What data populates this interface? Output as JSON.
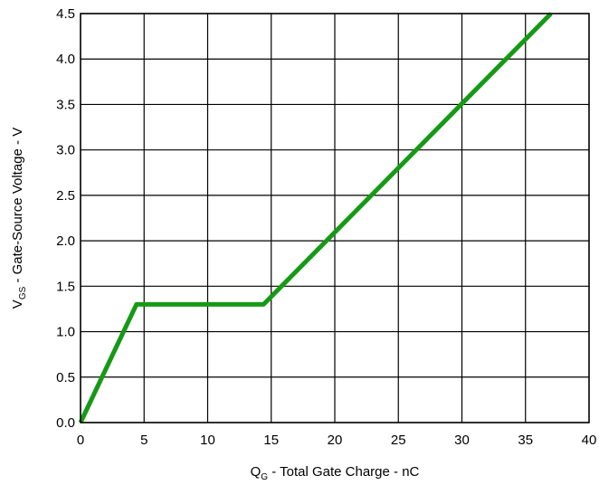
{
  "chart_data": {
    "type": "line",
    "xlabel": {
      "main": "Q",
      "sub": "G",
      "rest": " - Total Gate Charge - nC"
    },
    "ylabel": {
      "main": "V",
      "sub": "GS",
      "rest": " - Gate-Source Voltage - V"
    },
    "xlim": [
      0,
      40
    ],
    "ylim": [
      0,
      4.5
    ],
    "x_ticks": [
      0,
      5,
      10,
      15,
      20,
      25,
      30,
      35,
      40
    ],
    "x_tick_labels": [
      "0",
      "5",
      "10",
      "15",
      "20",
      "25",
      "30",
      "35",
      "40"
    ],
    "y_ticks": [
      0,
      0.5,
      1.0,
      1.5,
      2.0,
      2.5,
      3.0,
      3.5,
      4.0,
      4.5
    ],
    "y_tick_labels": [
      "0.0",
      "0.5",
      "1.0",
      "1.5",
      "2.0",
      "2.5",
      "3.0",
      "3.5",
      "4.0",
      "4.5"
    ],
    "grid": true,
    "line_color": "#159a15",
    "series": [
      {
        "x": [
          0,
          4.4,
          14.4,
          37
        ],
        "y": [
          0,
          1.3,
          1.3,
          4.5
        ]
      }
    ]
  }
}
